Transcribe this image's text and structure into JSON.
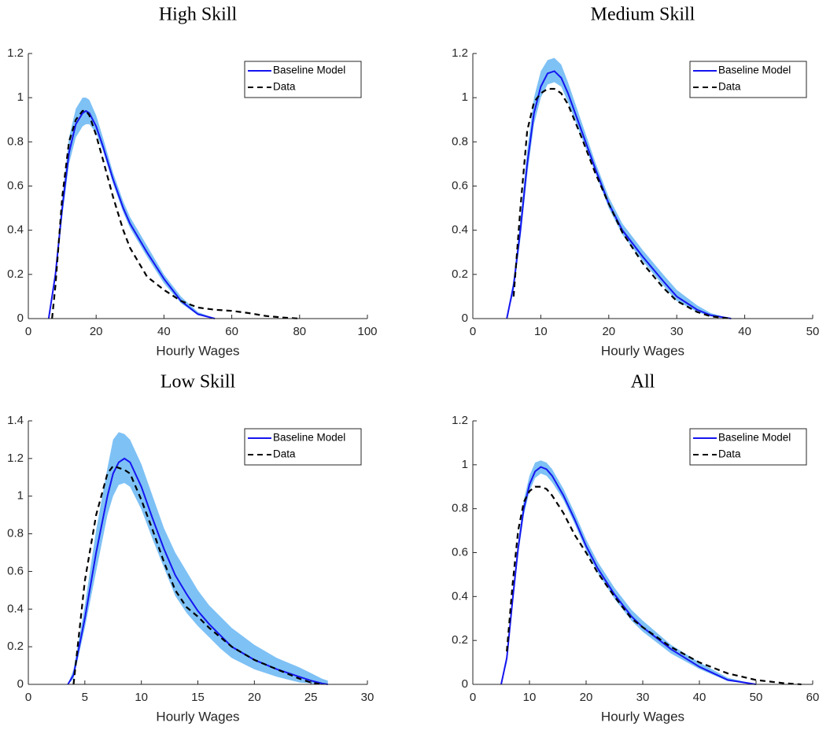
{
  "chart_data": [
    {
      "type": "line",
      "title": "High Skill",
      "x_label": "Hourly Wages",
      "x": [
        6,
        7,
        8,
        10,
        12,
        14,
        16,
        17,
        18,
        20,
        22,
        25,
        28,
        30,
        35,
        40,
        45,
        50,
        55,
        60,
        65,
        70,
        75,
        80
      ],
      "band": {
        "color": "#7ec1f5",
        "lower": [
          0,
          0.09,
          0.18,
          0.46,
          0.7,
          0.82,
          0.87,
          0.88,
          0.88,
          0.84,
          0.76,
          0.61,
          0.48,
          0.41,
          0.28,
          0.16,
          0.07,
          0.015,
          0,
          null,
          null,
          null,
          null,
          null
        ],
        "upper": [
          0,
          0.11,
          0.22,
          0.54,
          0.82,
          0.95,
          1.0,
          1.0,
          0.99,
          0.92,
          0.82,
          0.66,
          0.53,
          0.46,
          0.33,
          0.2,
          0.1,
          0.03,
          0,
          null,
          null,
          null,
          null,
          null
        ]
      },
      "series": [
        {
          "name": "Baseline Model",
          "color": "#1515f0",
          "dash": false,
          "values": [
            0,
            0.1,
            0.2,
            0.5,
            0.75,
            0.88,
            0.93,
            0.94,
            0.93,
            0.87,
            0.78,
            0.63,
            0.5,
            0.43,
            0.3,
            0.18,
            0.08,
            0.02,
            0,
            null,
            null,
            null,
            null,
            null
          ]
        },
        {
          "name": "Data",
          "color": "#000000",
          "dash": true,
          "values": [
            null,
            0,
            0.15,
            0.55,
            0.8,
            0.9,
            0.94,
            0.94,
            0.92,
            0.83,
            0.72,
            0.55,
            0.4,
            0.32,
            0.19,
            0.13,
            0.08,
            0.05,
            0.04,
            0.035,
            0.025,
            0.012,
            0.005,
            0
          ]
        }
      ],
      "xlim": [
        0,
        100
      ],
      "ylim": [
        0,
        1.2
      ],
      "xticks": [
        0,
        20,
        40,
        60,
        80,
        100
      ],
      "yticks": [
        0,
        0.2,
        0.4,
        0.6,
        0.8,
        1,
        1.2
      ],
      "legend": "upper right"
    },
    {
      "type": "line",
      "title": "Medium Skill",
      "x_label": "Hourly Wages",
      "x": [
        5,
        6,
        7,
        8,
        9,
        10,
        11,
        12,
        13,
        14,
        16,
        18,
        20,
        22,
        25,
        28,
        30,
        33,
        35,
        38,
        40
      ],
      "band": {
        "color": "#7ec1f5",
        "lower": [
          0,
          0.12,
          0.36,
          0.65,
          0.88,
          1.0,
          1.06,
          1.07,
          1.05,
          0.98,
          0.82,
          0.66,
          0.5,
          0.38,
          0.26,
          0.15,
          0.08,
          0.03,
          0.01,
          0,
          null
        ],
        "upper": [
          0,
          0.18,
          0.45,
          0.76,
          1.0,
          1.12,
          1.17,
          1.18,
          1.15,
          1.07,
          0.89,
          0.71,
          0.55,
          0.43,
          0.31,
          0.2,
          0.13,
          0.06,
          0.025,
          0,
          null
        ]
      },
      "series": [
        {
          "name": "Baseline Model",
          "color": "#1515f0",
          "dash": false,
          "values": [
            0,
            0.15,
            0.4,
            0.7,
            0.93,
            1.05,
            1.11,
            1.12,
            1.09,
            1.02,
            0.85,
            0.68,
            0.52,
            0.4,
            0.28,
            0.17,
            0.1,
            0.04,
            0.015,
            0,
            null
          ]
        },
        {
          "name": "Data",
          "color": "#000000",
          "dash": true,
          "values": [
            null,
            0.1,
            0.5,
            0.85,
            0.98,
            1.02,
            1.04,
            1.04,
            1.02,
            0.97,
            0.82,
            0.66,
            0.52,
            0.39,
            0.25,
            0.14,
            0.08,
            0.03,
            0.01,
            0,
            null
          ]
        }
      ],
      "xlim": [
        0,
        50
      ],
      "ylim": [
        0,
        1.2
      ],
      "xticks": [
        0,
        10,
        20,
        30,
        40,
        50
      ],
      "yticks": [
        0,
        0.2,
        0.4,
        0.6,
        0.8,
        1,
        1.2
      ],
      "legend": "upper right"
    },
    {
      "type": "line",
      "title": "Low Skill",
      "x_label": "Hourly Wages",
      "x": [
        3.5,
        4,
        5,
        6,
        7,
        7.5,
        8,
        8.5,
        9,
        10,
        11,
        12,
        13,
        14,
        15,
        16,
        17,
        18,
        20,
        22,
        24,
        25,
        26,
        26.5
      ],
      "band": {
        "color": "#7ec1f5",
        "lower": [
          0,
          0.03,
          0.3,
          0.6,
          0.9,
          1.0,
          1.06,
          1.07,
          1.05,
          0.93,
          0.77,
          0.62,
          0.47,
          0.38,
          0.31,
          0.25,
          0.19,
          0.14,
          0.08,
          0.04,
          0.01,
          0.005,
          0,
          0
        ],
        "upper": [
          0,
          0.08,
          0.42,
          0.82,
          1.15,
          1.3,
          1.34,
          1.33,
          1.3,
          1.17,
          1.0,
          0.83,
          0.7,
          0.6,
          0.5,
          0.42,
          0.36,
          0.3,
          0.21,
          0.14,
          0.09,
          0.06,
          0.03,
          0.02
        ]
      },
      "series": [
        {
          "name": "Baseline Model",
          "color": "#1515f0",
          "dash": false,
          "values": [
            0,
            0.05,
            0.35,
            0.7,
            1.0,
            1.12,
            1.18,
            1.2,
            1.18,
            1.05,
            0.88,
            0.72,
            0.58,
            0.48,
            0.39,
            0.32,
            0.26,
            0.2,
            0.13,
            0.08,
            0.04,
            0.02,
            0.005,
            0
          ]
        },
        {
          "name": "Data",
          "color": "#000000",
          "dash": true,
          "values": [
            null,
            0,
            0.55,
            0.9,
            1.12,
            1.16,
            1.15,
            1.14,
            1.12,
            0.98,
            0.82,
            0.65,
            0.5,
            0.41,
            0.36,
            0.3,
            0.25,
            0.2,
            0.13,
            0.08,
            0.03,
            0.01,
            0,
            null
          ]
        }
      ],
      "xlim": [
        0,
        30
      ],
      "ylim": [
        0,
        1.4
      ],
      "xticks": [
        0,
        5,
        10,
        15,
        20,
        25,
        30
      ],
      "yticks": [
        0,
        0.2,
        0.4,
        0.6,
        0.8,
        1,
        1.2,
        1.4
      ],
      "legend": "upper right"
    },
    {
      "type": "line",
      "title": "All",
      "x_label": "Hourly Wages",
      "x": [
        5,
        6,
        7,
        8,
        9,
        10,
        11,
        12,
        13,
        14,
        16,
        18,
        20,
        22,
        25,
        28,
        30,
        35,
        40,
        45,
        50,
        55,
        58
      ],
      "band": {
        "color": "#7ec1f5",
        "lower": [
          0,
          0.1,
          0.35,
          0.59,
          0.77,
          0.88,
          0.94,
          0.96,
          0.95,
          0.92,
          0.84,
          0.73,
          0.61,
          0.51,
          0.39,
          0.29,
          0.24,
          0.14,
          0.07,
          0.015,
          0,
          null,
          null
        ],
        "upper": [
          0,
          0.14,
          0.41,
          0.65,
          0.84,
          0.95,
          1.01,
          1.02,
          1.01,
          0.98,
          0.89,
          0.78,
          0.66,
          0.56,
          0.44,
          0.34,
          0.29,
          0.18,
          0.1,
          0.03,
          0,
          null,
          null
        ]
      },
      "series": [
        {
          "name": "Baseline Model",
          "color": "#1515f0",
          "dash": false,
          "values": [
            0,
            0.12,
            0.38,
            0.62,
            0.8,
            0.91,
            0.97,
            0.99,
            0.98,
            0.95,
            0.86,
            0.75,
            0.63,
            0.53,
            0.41,
            0.31,
            0.26,
            0.16,
            0.08,
            0.02,
            0,
            null,
            null
          ]
        },
        {
          "name": "Data",
          "color": "#000000",
          "dash": true,
          "values": [
            null,
            0.15,
            0.45,
            0.7,
            0.83,
            0.88,
            0.9,
            0.9,
            0.89,
            0.86,
            0.78,
            0.68,
            0.6,
            0.51,
            0.4,
            0.3,
            0.26,
            0.17,
            0.1,
            0.05,
            0.02,
            0.005,
            0
          ]
        }
      ],
      "xlim": [
        0,
        60
      ],
      "ylim": [
        0,
        1.2
      ],
      "xticks": [
        0,
        10,
        20,
        30,
        40,
        50,
        60
      ],
      "yticks": [
        0,
        0.2,
        0.4,
        0.6,
        0.8,
        1,
        1.2
      ],
      "legend": "upper right"
    }
  ]
}
